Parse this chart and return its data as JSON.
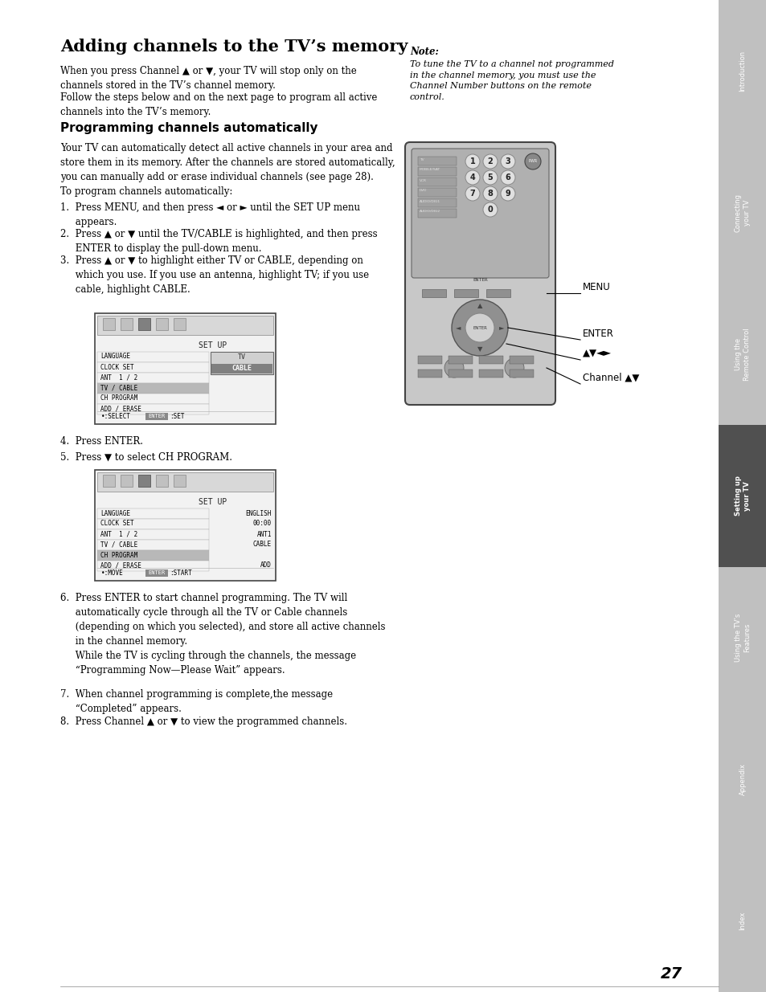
{
  "page_bg": "#ffffff",
  "sidebar_bg": "#c0c0c0",
  "sidebar_active_bg": "#505050",
  "sidebar_text_color": "#ffffff",
  "tabs": [
    {
      "label": "Introduction",
      "active": false
    },
    {
      "label": "Connecting\nyour TV",
      "active": false
    },
    {
      "label": "Using the\nRemote Control",
      "active": false
    },
    {
      "label": "Setting up\nyour TV",
      "active": true
    },
    {
      "label": "Using the TV’s\nFeatures",
      "active": false
    },
    {
      "label": "Appendix",
      "active": false
    },
    {
      "label": "Index",
      "active": false
    }
  ],
  "title": "Adding channels to the TV’s memory",
  "subtitle": "Programming channels automatically",
  "page_number": "27",
  "note_title": "Note:",
  "note_text": "To tune the TV to a channel not programmed\nin the channel memory, you must use the\nChannel Number buttons on the remote\ncontrol.",
  "body_text_1": "When you press Channel ▲ or ▼, your TV will stop only on the\nchannels stored in the TV’s channel memory.",
  "body_text_2": "Follow the steps below and on the next page to program all active\nchannels into the TV’s memory.",
  "sub_body_text": "Your TV can automatically detect all active channels in your area and\nstore them in its memory. After the channels are stored automatically,\nyou can manually add or erase individual channels (see page 28).",
  "steps_auto": "To program channels automatically:",
  "step1": "1.  Press MENU, and then press ◄ or ► until the SET UP menu\n     appears.",
  "step2": "2.  Press ▲ or ▼ until the TV/CABLE is highlighted, and then press\n     ENTER to display the pull-down menu.",
  "step3": "3.  Press ▲ or ▼ to highlight either TV or CABLE, depending on\n     which you use. If you use an antenna, highlight TV; if you use\n     cable, highlight CABLE.",
  "step4": "4.  Press ENTER.",
  "step5": "5.  Press ▼ to select CH PROGRAM.",
  "step6_a": "6.  Press ENTER to start channel programming. The TV will\n     automatically cycle through all the TV or Cable channels\n     (depending on which you selected), and store all active channels\n     in the channel memory.",
  "step6_b": "     While the TV is cycling through the channels, the message\n     “Programming Now—Please Wait” appears.",
  "step7": "7.  When channel programming is complete,the message\n     “Completed” appears.",
  "step8": "8.  Press Channel ▲ or ▼ to view the programmed channels.",
  "menu_labels_1": [
    "LANGUAGE",
    "CLOCK SET",
    "ANT  1 / 2",
    "TV / CABLE",
    "CH PROGRAM",
    "ADD / ERASE"
  ],
  "menu_highlight_1": "TV / CABLE",
  "menu_title_1": "SET UP",
  "menu_labels_2": [
    "LANGUAGE",
    "CLOCK SET",
    "ANT  1 / 2",
    "TV / CABLE",
    "CH PROGRAM",
    "ADD / ERASE"
  ],
  "menu_right_2": {
    "LANGUAGE": "ENGLISH",
    "CLOCK SET": "00:00",
    "ANT  1 / 2": "ANT1",
    "TV / CABLE": "CABLE",
    "ADD / ERASE": "ADD"
  },
  "menu_highlight_2": "CH PROGRAM",
  "menu_title_2": "SET UP"
}
